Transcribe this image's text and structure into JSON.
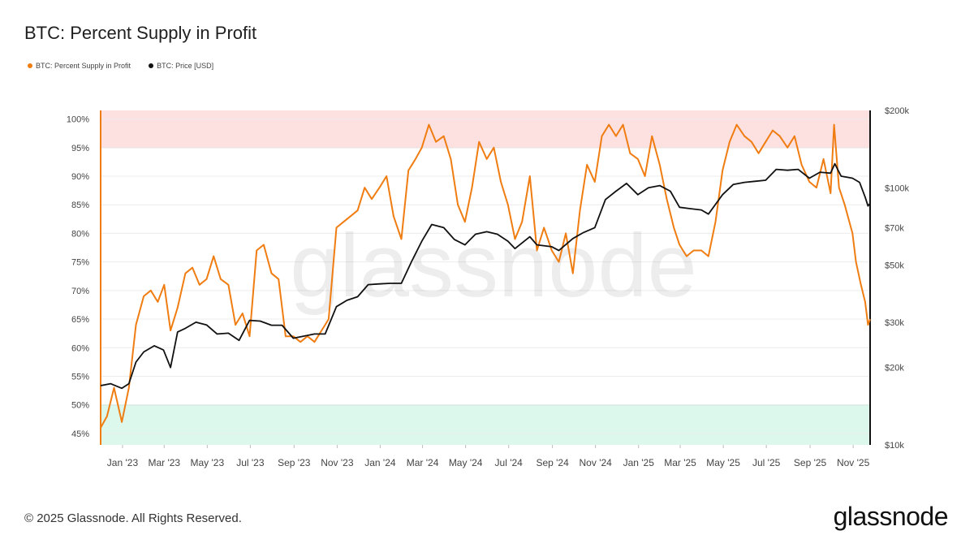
{
  "title": "BTC: Percent Supply in Profit",
  "legend": [
    {
      "label": "BTC: Percent Supply in Profit",
      "color": "#f07d12"
    },
    {
      "label": "BTC: Price [USD]",
      "color": "#111111"
    }
  ],
  "footer": "© 2025 Glassnode. All Rights Reserved.",
  "brand": "glassnode",
  "watermark": "glassnode",
  "chart_data": {
    "type": "line",
    "x_ticks": [
      "Jan '23",
      "Mar '23",
      "May '23",
      "Jul '23",
      "Sep '23",
      "Nov '23",
      "Jan '24",
      "Mar '24",
      "May '24",
      "Jul '24",
      "Sep '24",
      "Nov '24",
      "Jan '25",
      "Mar '25",
      "May '25",
      "Jul '25",
      "Sep '25",
      "Nov '25"
    ],
    "x_range": [
      "2022-12-01",
      "2025-11-25"
    ],
    "y_left": {
      "ticks": [
        "45%",
        "50%",
        "55%",
        "60%",
        "65%",
        "70%",
        "75%",
        "80%",
        "85%",
        "90%",
        "95%",
        "100%"
      ],
      "range": [
        43,
        101.5
      ]
    },
    "y_right": {
      "ticks": [
        "$10k",
        "$20k",
        "$30k",
        "$50k",
        "$70k",
        "$100k",
        "$200k"
      ],
      "tick_values": [
        10000,
        20000,
        30000,
        50000,
        70000,
        100000,
        200000
      ],
      "scale": "log",
      "range": [
        10000,
        200000
      ]
    },
    "bands": [
      {
        "from": 95,
        "to": 101.5,
        "color": "#fde0e0"
      },
      {
        "from": 43,
        "to": 50,
        "color": "#dcf7ec"
      }
    ],
    "grid": true,
    "series": [
      {
        "name": "BTC: Percent Supply in Profit",
        "axis": "left",
        "color": "#f07d12",
        "points": [
          [
            "2022-12-01",
            46
          ],
          [
            "2022-12-10",
            48
          ],
          [
            "2022-12-20",
            53
          ],
          [
            "2022-12-31",
            47
          ],
          [
            "2023-01-10",
            53
          ],
          [
            "2023-01-20",
            64
          ],
          [
            "2023-01-31",
            69
          ],
          [
            "2023-02-10",
            70
          ],
          [
            "2023-02-20",
            68
          ],
          [
            "2023-03-01",
            71
          ],
          [
            "2023-03-10",
            63
          ],
          [
            "2023-03-20",
            67
          ],
          [
            "2023-03-31",
            73
          ],
          [
            "2023-04-10",
            74
          ],
          [
            "2023-04-20",
            71
          ],
          [
            "2023-04-30",
            72
          ],
          [
            "2023-05-10",
            76
          ],
          [
            "2023-05-20",
            72
          ],
          [
            "2023-05-31",
            71
          ],
          [
            "2023-06-10",
            64
          ],
          [
            "2023-06-20",
            66
          ],
          [
            "2023-06-30",
            62
          ],
          [
            "2023-07-10",
            77
          ],
          [
            "2023-07-20",
            78
          ],
          [
            "2023-07-31",
            73
          ],
          [
            "2023-08-10",
            72
          ],
          [
            "2023-08-20",
            62
          ],
          [
            "2023-08-31",
            62
          ],
          [
            "2023-09-10",
            61
          ],
          [
            "2023-09-20",
            62
          ],
          [
            "2023-09-30",
            61
          ],
          [
            "2023-10-10",
            63
          ],
          [
            "2023-10-20",
            65
          ],
          [
            "2023-10-31",
            81
          ],
          [
            "2023-11-10",
            82
          ],
          [
            "2023-11-20",
            83
          ],
          [
            "2023-11-30",
            84
          ],
          [
            "2023-12-10",
            88
          ],
          [
            "2023-12-20",
            86
          ],
          [
            "2023-12-31",
            88
          ],
          [
            "2024-01-10",
            90
          ],
          [
            "2024-01-20",
            83
          ],
          [
            "2024-01-31",
            79
          ],
          [
            "2024-02-10",
            91
          ],
          [
            "2024-02-20",
            93
          ],
          [
            "2024-02-29",
            95
          ],
          [
            "2024-03-10",
            99
          ],
          [
            "2024-03-20",
            96
          ],
          [
            "2024-03-31",
            97
          ],
          [
            "2024-04-10",
            93
          ],
          [
            "2024-04-20",
            85
          ],
          [
            "2024-04-30",
            82
          ],
          [
            "2024-05-10",
            88
          ],
          [
            "2024-05-20",
            96
          ],
          [
            "2024-05-31",
            93
          ],
          [
            "2024-06-10",
            95
          ],
          [
            "2024-06-20",
            89
          ],
          [
            "2024-06-30",
            85
          ],
          [
            "2024-07-10",
            79
          ],
          [
            "2024-07-20",
            82
          ],
          [
            "2024-07-31",
            90
          ],
          [
            "2024-08-10",
            77
          ],
          [
            "2024-08-20",
            81
          ],
          [
            "2024-08-31",
            77
          ],
          [
            "2024-09-10",
            75
          ],
          [
            "2024-09-20",
            80
          ],
          [
            "2024-09-30",
            73
          ],
          [
            "2024-10-10",
            84
          ],
          [
            "2024-10-20",
            92
          ],
          [
            "2024-10-31",
            89
          ],
          [
            "2024-11-10",
            97
          ],
          [
            "2024-11-20",
            99
          ],
          [
            "2024-11-30",
            97
          ],
          [
            "2024-12-10",
            99
          ],
          [
            "2024-12-20",
            94
          ],
          [
            "2024-12-31",
            93
          ],
          [
            "2025-01-10",
            90
          ],
          [
            "2025-01-20",
            97
          ],
          [
            "2025-01-31",
            92
          ],
          [
            "2025-02-10",
            86
          ],
          [
            "2025-02-20",
            81
          ],
          [
            "2025-02-28",
            78
          ],
          [
            "2025-03-10",
            76
          ],
          [
            "2025-03-20",
            77
          ],
          [
            "2025-03-31",
            77
          ],
          [
            "2025-04-10",
            76
          ],
          [
            "2025-04-20",
            82
          ],
          [
            "2025-04-30",
            91
          ],
          [
            "2025-05-10",
            96
          ],
          [
            "2025-05-20",
            99
          ],
          [
            "2025-05-31",
            97
          ],
          [
            "2025-06-10",
            96
          ],
          [
            "2025-06-20",
            94
          ],
          [
            "2025-06-30",
            96
          ],
          [
            "2025-07-10",
            98
          ],
          [
            "2025-07-20",
            97
          ],
          [
            "2025-07-31",
            95
          ],
          [
            "2025-08-10",
            97
          ],
          [
            "2025-08-20",
            92
          ],
          [
            "2025-08-31",
            89
          ],
          [
            "2025-09-10",
            88
          ],
          [
            "2025-09-20",
            93
          ],
          [
            "2025-09-30",
            87
          ],
          [
            "2025-10-05",
            99
          ],
          [
            "2025-10-12",
            88
          ],
          [
            "2025-10-20",
            85
          ],
          [
            "2025-10-31",
            80
          ],
          [
            "2025-11-05",
            75
          ],
          [
            "2025-11-12",
            71
          ],
          [
            "2025-11-18",
            68
          ],
          [
            "2025-11-22",
            64
          ],
          [
            "2025-11-25",
            65
          ]
        ]
      },
      {
        "name": "BTC: Price [USD]",
        "axis": "right",
        "color": "#111111",
        "points": [
          [
            "2022-12-01",
            17000
          ],
          [
            "2022-12-15",
            17300
          ],
          [
            "2022-12-31",
            16600
          ],
          [
            "2023-01-10",
            17300
          ],
          [
            "2023-01-20",
            21000
          ],
          [
            "2023-01-31",
            23000
          ],
          [
            "2023-02-15",
            24300
          ],
          [
            "2023-02-28",
            23400
          ],
          [
            "2023-03-10",
            20000
          ],
          [
            "2023-03-20",
            27500
          ],
          [
            "2023-03-31",
            28400
          ],
          [
            "2023-04-15",
            30000
          ],
          [
            "2023-04-30",
            29300
          ],
          [
            "2023-05-15",
            27000
          ],
          [
            "2023-05-31",
            27200
          ],
          [
            "2023-06-15",
            25500
          ],
          [
            "2023-06-30",
            30500
          ],
          [
            "2023-07-15",
            30300
          ],
          [
            "2023-07-31",
            29200
          ],
          [
            "2023-08-15",
            29200
          ],
          [
            "2023-08-31",
            26000
          ],
          [
            "2023-09-15",
            26500
          ],
          [
            "2023-09-30",
            27000
          ],
          [
            "2023-10-15",
            27000
          ],
          [
            "2023-10-31",
            34500
          ],
          [
            "2023-11-15",
            36500
          ],
          [
            "2023-11-30",
            37700
          ],
          [
            "2023-12-15",
            42000
          ],
          [
            "2023-12-31",
            42300
          ],
          [
            "2024-01-15",
            42500
          ],
          [
            "2024-01-31",
            42500
          ],
          [
            "2024-02-15",
            52000
          ],
          [
            "2024-02-29",
            62000
          ],
          [
            "2024-03-14",
            72000
          ],
          [
            "2024-03-31",
            70000
          ],
          [
            "2024-04-15",
            63000
          ],
          [
            "2024-04-30",
            60000
          ],
          [
            "2024-05-15",
            66000
          ],
          [
            "2024-05-31",
            67500
          ],
          [
            "2024-06-15",
            66000
          ],
          [
            "2024-06-30",
            62000
          ],
          [
            "2024-07-10",
            58000
          ],
          [
            "2024-07-31",
            64500
          ],
          [
            "2024-08-10",
            60000
          ],
          [
            "2024-08-31",
            59000
          ],
          [
            "2024-09-10",
            57000
          ],
          [
            "2024-09-30",
            63500
          ],
          [
            "2024-10-15",
            67000
          ],
          [
            "2024-10-31",
            70000
          ],
          [
            "2024-11-15",
            90000
          ],
          [
            "2024-11-30",
            97000
          ],
          [
            "2024-12-15",
            104000
          ],
          [
            "2024-12-31",
            94000
          ],
          [
            "2025-01-15",
            100000
          ],
          [
            "2025-01-31",
            102000
          ],
          [
            "2025-02-15",
            97000
          ],
          [
            "2025-02-28",
            84000
          ],
          [
            "2025-03-15",
            83000
          ],
          [
            "2025-03-31",
            82000
          ],
          [
            "2025-04-10",
            79000
          ],
          [
            "2025-04-30",
            94000
          ],
          [
            "2025-05-15",
            103000
          ],
          [
            "2025-05-31",
            105000
          ],
          [
            "2025-06-15",
            106000
          ],
          [
            "2025-06-30",
            107000
          ],
          [
            "2025-07-15",
            118000
          ],
          [
            "2025-07-31",
            117000
          ],
          [
            "2025-08-15",
            118000
          ],
          [
            "2025-08-31",
            109000
          ],
          [
            "2025-09-15",
            115000
          ],
          [
            "2025-09-30",
            114000
          ],
          [
            "2025-10-06",
            124000
          ],
          [
            "2025-10-15",
            111000
          ],
          [
            "2025-10-31",
            109000
          ],
          [
            "2025-11-10",
            105000
          ],
          [
            "2025-11-18",
            92000
          ],
          [
            "2025-11-22",
            85000
          ],
          [
            "2025-11-25",
            87000
          ]
        ]
      }
    ]
  }
}
